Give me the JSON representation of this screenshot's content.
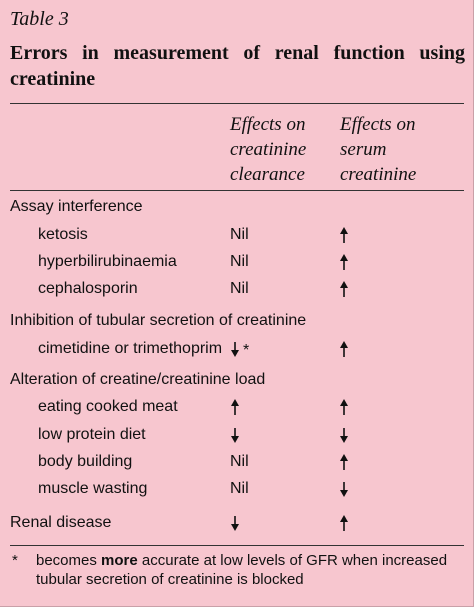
{
  "table_label": "Table 3",
  "title": "Errors in measurement of renal function using creatinine",
  "columns": {
    "clearance": [
      "Effects on",
      "creatinine",
      "clearance"
    ],
    "serum": [
      "Effects on",
      "serum",
      "creatinine"
    ]
  },
  "groups": [
    {
      "heading": "Assay interference",
      "rows": [
        {
          "label": "ketosis",
          "clearance": "Nil",
          "serum": "up"
        },
        {
          "label": "hyperbilirubinaemia",
          "clearance": "Nil",
          "serum": "up"
        },
        {
          "label": "cephalosporin",
          "clearance": "Nil",
          "serum": "up"
        }
      ]
    },
    {
      "heading": "Inhibition of tubular secretion of creatinine",
      "rows": [
        {
          "label": "cimetidine or trimethoprim",
          "clearance": "down",
          "clearance_note": "*",
          "serum": "up"
        }
      ]
    },
    {
      "heading": "Alteration of creatine/creatinine load",
      "rows": [
        {
          "label": "eating cooked meat",
          "clearance": "up",
          "serum": "up"
        },
        {
          "label": "low protein diet",
          "clearance": "down",
          "serum": "down"
        },
        {
          "label": "body building",
          "clearance": "Nil",
          "serum": "up"
        },
        {
          "label": "muscle wasting",
          "clearance": "Nil",
          "serum": "down"
        }
      ]
    },
    {
      "heading": "Renal disease",
      "rows": [],
      "clearance": "down",
      "serum": "up"
    }
  ],
  "footnote": {
    "marker": "*",
    "before": "becomes ",
    "bold": "more",
    "after": " accurate at low levels of GFR when increased tubular secretion of creatinine is blocked"
  },
  "colors": {
    "background": "#f7c6cf",
    "text": "#111111"
  },
  "icons": {
    "up": "arrow-up-icon",
    "down": "arrow-down-icon"
  }
}
